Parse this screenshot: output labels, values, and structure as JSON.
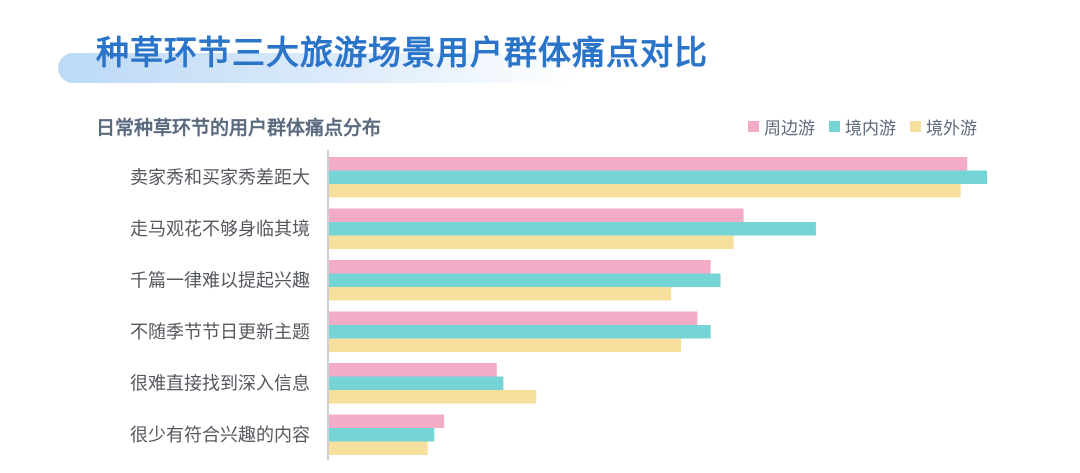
{
  "header": {
    "title": "种草环节三大旅游场景用户群体痛点对比"
  },
  "chart_data": {
    "type": "bar",
    "orientation": "horizontal",
    "title": "日常种草环节的用户群体痛点分布",
    "categories": [
      "卖家秀和买家秀差距大",
      "走马观花不够身临其境",
      "千篇一律难以提起兴趣",
      "不随季节节日更新主题",
      "很难直接找到深入信息",
      "很少有符合兴趣的内容"
    ],
    "series": [
      {
        "name": "周边游",
        "color": "#f3abc8",
        "values": [
          97,
          63,
          58,
          56,
          25.5,
          17.5
        ]
      },
      {
        "name": "境内游",
        "color": "#74d4d6",
        "values": [
          100,
          74,
          59.5,
          58,
          26.5,
          16
        ]
      },
      {
        "name": "境外游",
        "color": "#f7e09d",
        "values": [
          96,
          61.5,
          52,
          53.5,
          31.5,
          15
        ]
      }
    ],
    "xlim": [
      0,
      100
    ],
    "grid": false,
    "legend": "top-right",
    "axis_color": "#9aa0a8"
  }
}
